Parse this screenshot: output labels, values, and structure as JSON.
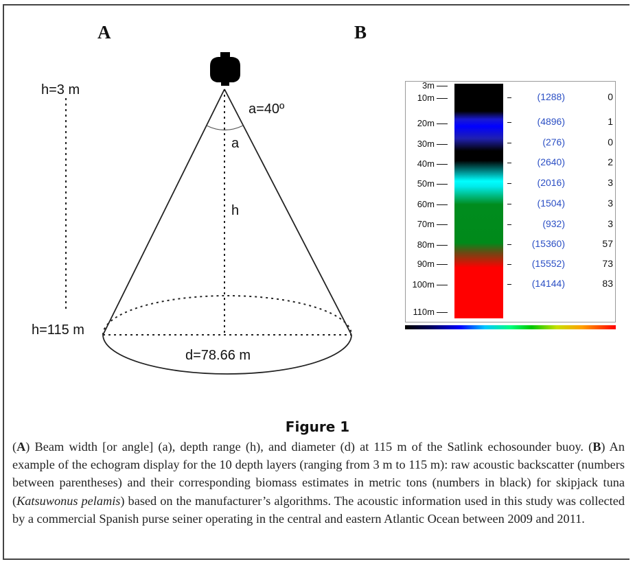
{
  "panel_a": {
    "label": "A",
    "top_depth_label": "h=3 m",
    "bottom_depth_label": "h=115 m",
    "angle_label": "a=40º",
    "angle_symbol": "a",
    "height_symbol": "h",
    "diameter_label": "d=78.66 m"
  },
  "panel_b": {
    "label": "B",
    "layers": [
      {
        "depth": "3m",
        "raw": "",
        "biomass": ""
      },
      {
        "depth": "10m",
        "raw": "(1288)",
        "biomass": "0"
      },
      {
        "depth": "20m",
        "raw": "(4896)",
        "biomass": "1"
      },
      {
        "depth": "30m",
        "raw": "(276)",
        "biomass": "0"
      },
      {
        "depth": "40m",
        "raw": "(2640)",
        "biomass": "2"
      },
      {
        "depth": "50m",
        "raw": "(2016)",
        "biomass": "3"
      },
      {
        "depth": "60m",
        "raw": "(1504)",
        "biomass": "3"
      },
      {
        "depth": "70m",
        "raw": "(932)",
        "biomass": "3"
      },
      {
        "depth": "80m",
        "raw": "(15360)",
        "biomass": "57"
      },
      {
        "depth": "90m",
        "raw": "(15552)",
        "biomass": "73"
      },
      {
        "depth": "100m",
        "raw": "(14144)",
        "biomass": "83"
      },
      {
        "depth": "110m",
        "raw": "",
        "biomass": ""
      }
    ],
    "raw_color": "#2b4fc4"
  },
  "figure": {
    "title": "Figure 1",
    "caption": {
      "a_key": "A",
      "part1": ") Beam width [or angle] (a), depth range (h), and diameter (d) at 115 m of the Satlink echosounder buoy. (",
      "b_key": "B",
      "part2": ") An example of the echogram display for the 10 depth layers (ranging from 3 m to 115 m): raw acoustic backscatter (numbers between parentheses) and their corresponding biomass estimates in metric tons (numbers in black) for skipjack tuna (",
      "species": "Katsuwonus pelamis",
      "part3": ") based on the manufacturer’s algorithms. The acoustic information used in this study was collected by a commercial Spanish purse seiner operating in the central and eastern Atlantic Ocean between 2009 and 2011."
    }
  }
}
